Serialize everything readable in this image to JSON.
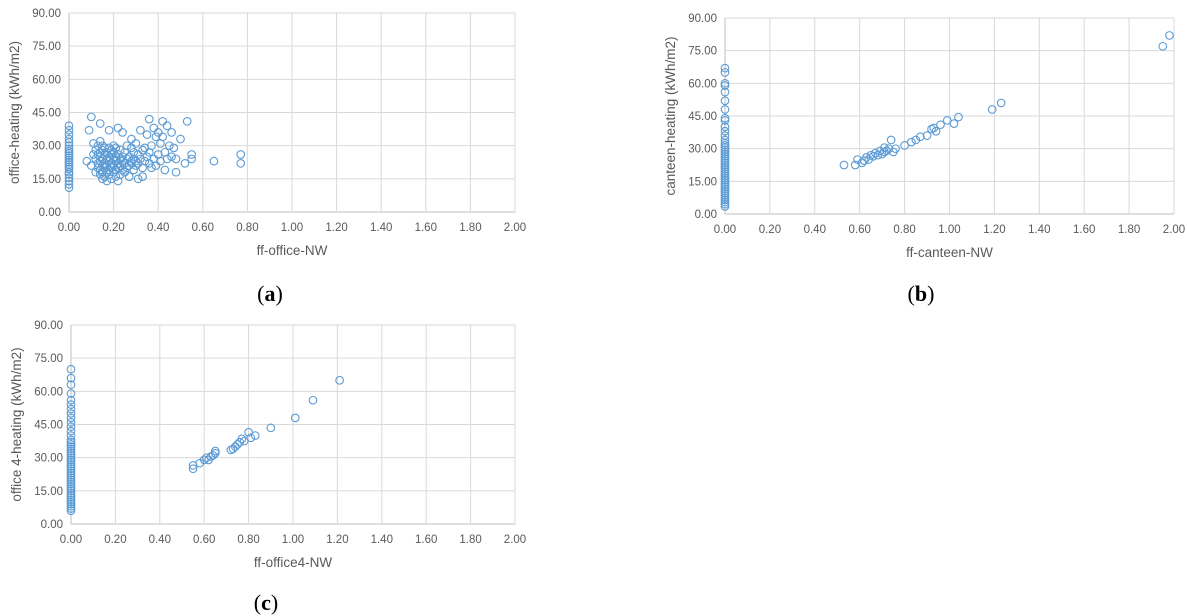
{
  "colors": {
    "marker": "#5b9bd5",
    "grid": "#d9d9d9",
    "axis": "#bfbfbf",
    "text": "#595959"
  },
  "chart_data": [
    {
      "id": "a",
      "type": "scatter",
      "panel_label": "a",
      "xlabel": "ff-office-NW",
      "ylabel": "office-heating (kWh/m2)",
      "xlim": [
        0,
        2
      ],
      "ylim": [
        0,
        90
      ],
      "xticks": [
        "0.00",
        "0.20",
        "0.40",
        "0.60",
        "0.80",
        "1.00",
        "1.20",
        "1.40",
        "1.60",
        "1.80",
        "2.00"
      ],
      "yticks": [
        "0.00",
        "15.00",
        "30.00",
        "45.00",
        "60.00",
        "75.00",
        "90.00"
      ],
      "grid": true,
      "points": [
        [
          0,
          11
        ],
        [
          0,
          12.5
        ],
        [
          0,
          14
        ],
        [
          0,
          15.5
        ],
        [
          0,
          17
        ],
        [
          0,
          18
        ],
        [
          0,
          19.5
        ],
        [
          0,
          20.5
        ],
        [
          0,
          21.5
        ],
        [
          0,
          22.5
        ],
        [
          0,
          23.5
        ],
        [
          0,
          24.5
        ],
        [
          0,
          25.5
        ],
        [
          0,
          26.5
        ],
        [
          0,
          27.5
        ],
        [
          0,
          28.5
        ],
        [
          0,
          30
        ],
        [
          0,
          31.5
        ],
        [
          0,
          33
        ],
        [
          0,
          35
        ],
        [
          0,
          37
        ],
        [
          0,
          39
        ],
        [
          0.08,
          23
        ],
        [
          0.09,
          37
        ],
        [
          0.1,
          43
        ],
        [
          0.1,
          21
        ],
        [
          0.11,
          26
        ],
        [
          0.11,
          31
        ],
        [
          0.12,
          18
        ],
        [
          0.12,
          24
        ],
        [
          0.12,
          28
        ],
        [
          0.13,
          20
        ],
        [
          0.13,
          22
        ],
        [
          0.13,
          26
        ],
        [
          0.13,
          30
        ],
        [
          0.14,
          17
        ],
        [
          0.14,
          19
        ],
        [
          0.14,
          23
        ],
        [
          0.14,
          25
        ],
        [
          0.14,
          27
        ],
        [
          0.14,
          32
        ],
        [
          0.14,
          40
        ],
        [
          0.15,
          15
        ],
        [
          0.15,
          18
        ],
        [
          0.15,
          21
        ],
        [
          0.15,
          24
        ],
        [
          0.15,
          28
        ],
        [
          0.15,
          30
        ],
        [
          0.16,
          16
        ],
        [
          0.16,
          20
        ],
        [
          0.16,
          22
        ],
        [
          0.16,
          26
        ],
        [
          0.16,
          29
        ],
        [
          0.17,
          14
        ],
        [
          0.17,
          18
        ],
        [
          0.17,
          21
        ],
        [
          0.17,
          24
        ],
        [
          0.17,
          27
        ],
        [
          0.18,
          17
        ],
        [
          0.18,
          19
        ],
        [
          0.18,
          23
        ],
        [
          0.18,
          25
        ],
        [
          0.18,
          29
        ],
        [
          0.18,
          37
        ],
        [
          0.19,
          15
        ],
        [
          0.19,
          20
        ],
        [
          0.19,
          22
        ],
        [
          0.19,
          26
        ],
        [
          0.19,
          28
        ],
        [
          0.2,
          18
        ],
        [
          0.2,
          21
        ],
        [
          0.2,
          24
        ],
        [
          0.2,
          27
        ],
        [
          0.2,
          30
        ],
        [
          0.21,
          16
        ],
        [
          0.21,
          19
        ],
        [
          0.21,
          23
        ],
        [
          0.21,
          25
        ],
        [
          0.21,
          29
        ],
        [
          0.22,
          14
        ],
        [
          0.22,
          20
        ],
        [
          0.22,
          22
        ],
        [
          0.22,
          26
        ],
        [
          0.22,
          38
        ],
        [
          0.23,
          17
        ],
        [
          0.23,
          21
        ],
        [
          0.23,
          24
        ],
        [
          0.23,
          28
        ],
        [
          0.24,
          19
        ],
        [
          0.24,
          23
        ],
        [
          0.24,
          25
        ],
        [
          0.24,
          36
        ],
        [
          0.25,
          18
        ],
        [
          0.25,
          22
        ],
        [
          0.25,
          27
        ],
        [
          0.26,
          20
        ],
        [
          0.26,
          24
        ],
        [
          0.26,
          30
        ],
        [
          0.27,
          16
        ],
        [
          0.27,
          21
        ],
        [
          0.27,
          25
        ],
        [
          0.28,
          22
        ],
        [
          0.28,
          23
        ],
        [
          0.28,
          29
        ],
        [
          0.28,
          33
        ],
        [
          0.29,
          19
        ],
        [
          0.29,
          24
        ],
        [
          0.29,
          27
        ],
        [
          0.3,
          21
        ],
        [
          0.3,
          23
        ],
        [
          0.3,
          31
        ],
        [
          0.31,
          15
        ],
        [
          0.31,
          22
        ],
        [
          0.31,
          26
        ],
        [
          0.32,
          24
        ],
        [
          0.32,
          37
        ],
        [
          0.33,
          16
        ],
        [
          0.33,
          20
        ],
        [
          0.33,
          28
        ],
        [
          0.34,
          23
        ],
        [
          0.34,
          29
        ],
        [
          0.35,
          25
        ],
        [
          0.35,
          35
        ],
        [
          0.36,
          22
        ],
        [
          0.36,
          27
        ],
        [
          0.36,
          42
        ],
        [
          0.37,
          20
        ],
        [
          0.37,
          30
        ],
        [
          0.38,
          24
        ],
        [
          0.38,
          38
        ],
        [
          0.39,
          21
        ],
        [
          0.39,
          34
        ],
        [
          0.4,
          26
        ],
        [
          0.4,
          36
        ],
        [
          0.41,
          23
        ],
        [
          0.41,
          31
        ],
        [
          0.42,
          34
        ],
        [
          0.42,
          41
        ],
        [
          0.43,
          19
        ],
        [
          0.43,
          27
        ],
        [
          0.44,
          24
        ],
        [
          0.44,
          39
        ],
        [
          0.45,
          30
        ],
        [
          0.46,
          25
        ],
        [
          0.46,
          36
        ],
        [
          0.47,
          29
        ],
        [
          0.48,
          18
        ],
        [
          0.48,
          24
        ],
        [
          0.5,
          33
        ],
        [
          0.52,
          22
        ],
        [
          0.53,
          41
        ],
        [
          0.55,
          24
        ],
        [
          0.55,
          26
        ],
        [
          0.65,
          23
        ],
        [
          0.77,
          22
        ],
        [
          0.77,
          26
        ]
      ]
    },
    {
      "id": "b",
      "type": "scatter",
      "panel_label": "b",
      "xlabel": "ff-canteen-NW",
      "ylabel": "canteen-heating (kWh/m2)",
      "xlim": [
        0,
        2
      ],
      "ylim": [
        0,
        90
      ],
      "xticks": [
        "0.00",
        "0.20",
        "0.40",
        "0.60",
        "0.80",
        "1.00",
        "1.20",
        "1.40",
        "1.60",
        "1.80",
        "2.00"
      ],
      "yticks": [
        "0.00",
        "15.00",
        "30.00",
        "45.00",
        "60.00",
        "75.00",
        "90.00"
      ],
      "grid": true,
      "points": [
        [
          0,
          3.5
        ],
        [
          0,
          4.5
        ],
        [
          0,
          5.5
        ],
        [
          0,
          6.5
        ],
        [
          0,
          7.5
        ],
        [
          0,
          8.5
        ],
        [
          0,
          9.5
        ],
        [
          0,
          10.5
        ],
        [
          0,
          11.5
        ],
        [
          0,
          12.5
        ],
        [
          0,
          13.5
        ],
        [
          0,
          14.5
        ],
        [
          0,
          15.5
        ],
        [
          0,
          16.5
        ],
        [
          0,
          17.5
        ],
        [
          0,
          18.5
        ],
        [
          0,
          19.5
        ],
        [
          0,
          20.5
        ],
        [
          0,
          21.5
        ],
        [
          0,
          22.5
        ],
        [
          0,
          23.5
        ],
        [
          0,
          24.5
        ],
        [
          0,
          25.5
        ],
        [
          0,
          26.5
        ],
        [
          0,
          27.5
        ],
        [
          0,
          28.5
        ],
        [
          0,
          29.5
        ],
        [
          0,
          30.5
        ],
        [
          0,
          31.5
        ],
        [
          0,
          32.5
        ],
        [
          0,
          34
        ],
        [
          0,
          36
        ],
        [
          0,
          38
        ],
        [
          0,
          40
        ],
        [
          0,
          43
        ],
        [
          0,
          44
        ],
        [
          0,
          48
        ],
        [
          0,
          52
        ],
        [
          0,
          56
        ],
        [
          0,
          59
        ],
        [
          0,
          60
        ],
        [
          0,
          65
        ],
        [
          0,
          67
        ],
        [
          0.53,
          22.5
        ],
        [
          0.58,
          22.5
        ],
        [
          0.59,
          25
        ],
        [
          0.61,
          23.5
        ],
        [
          0.62,
          24.5
        ],
        [
          0.63,
          26
        ],
        [
          0.64,
          25
        ],
        [
          0.65,
          27
        ],
        [
          0.66,
          26.5
        ],
        [
          0.67,
          28
        ],
        [
          0.68,
          27
        ],
        [
          0.69,
          29
        ],
        [
          0.7,
          27.5
        ],
        [
          0.71,
          28.5
        ],
        [
          0.71,
          30.5
        ],
        [
          0.72,
          29
        ],
        [
          0.73,
          30
        ],
        [
          0.74,
          34
        ],
        [
          0.75,
          28.5
        ],
        [
          0.76,
          30
        ],
        [
          0.8,
          31.5
        ],
        [
          0.83,
          33
        ],
        [
          0.85,
          34
        ],
        [
          0.87,
          35.5
        ],
        [
          0.9,
          36
        ],
        [
          0.92,
          39
        ],
        [
          0.93,
          39.5
        ],
        [
          0.94,
          38
        ],
        [
          0.96,
          41
        ],
        [
          0.99,
          43
        ],
        [
          1.02,
          41.5
        ],
        [
          1.04,
          44.5
        ],
        [
          1.19,
          48
        ],
        [
          1.23,
          51
        ],
        [
          1.95,
          77
        ],
        [
          1.98,
          82
        ]
      ]
    },
    {
      "id": "c",
      "type": "scatter",
      "panel_label": "c",
      "xlabel": "ff-office4-NW",
      "ylabel": "office 4-heating (kWh/m2)",
      "xlim": [
        0,
        2
      ],
      "ylim": [
        0,
        90
      ],
      "xticks": [
        "0.00",
        "0.20",
        "0.40",
        "0.60",
        "0.80",
        "1.00",
        "1.20",
        "1.40",
        "1.60",
        "1.80",
        "2.00"
      ],
      "yticks": [
        "0.00",
        "15.00",
        "30.00",
        "45.00",
        "60.00",
        "75.00",
        "90.00"
      ],
      "grid": true,
      "points": [
        [
          0,
          6
        ],
        [
          0,
          7
        ],
        [
          0,
          8
        ],
        [
          0,
          9
        ],
        [
          0,
          10
        ],
        [
          0,
          11
        ],
        [
          0,
          12
        ],
        [
          0,
          13
        ],
        [
          0,
          14
        ],
        [
          0,
          15
        ],
        [
          0,
          16
        ],
        [
          0,
          17
        ],
        [
          0,
          18
        ],
        [
          0,
          19
        ],
        [
          0,
          20
        ],
        [
          0,
          21
        ],
        [
          0,
          22
        ],
        [
          0,
          23
        ],
        [
          0,
          24
        ],
        [
          0,
          25
        ],
        [
          0,
          26
        ],
        [
          0,
          27
        ],
        [
          0,
          28
        ],
        [
          0,
          29
        ],
        [
          0,
          30
        ],
        [
          0,
          31
        ],
        [
          0,
          32
        ],
        [
          0,
          33
        ],
        [
          0,
          34
        ],
        [
          0,
          35
        ],
        [
          0,
          36
        ],
        [
          0,
          37
        ],
        [
          0,
          38
        ],
        [
          0,
          40
        ],
        [
          0,
          42
        ],
        [
          0,
          44
        ],
        [
          0,
          46
        ],
        [
          0,
          48
        ],
        [
          0,
          50
        ],
        [
          0,
          52
        ],
        [
          0,
          54
        ],
        [
          0,
          56
        ],
        [
          0,
          59
        ],
        [
          0,
          63
        ],
        [
          0,
          66
        ],
        [
          0,
          70
        ],
        [
          0.55,
          25
        ],
        [
          0.55,
          26.5
        ],
        [
          0.58,
          27.5
        ],
        [
          0.6,
          29
        ],
        [
          0.61,
          30
        ],
        [
          0.62,
          29
        ],
        [
          0.63,
          30.5
        ],
        [
          0.64,
          31
        ],
        [
          0.65,
          32
        ],
        [
          0.65,
          33
        ],
        [
          0.72,
          33.5
        ],
        [
          0.73,
          34
        ],
        [
          0.74,
          35
        ],
        [
          0.75,
          36
        ],
        [
          0.76,
          37
        ],
        [
          0.77,
          38.5
        ],
        [
          0.78,
          37.5
        ],
        [
          0.8,
          41.5
        ],
        [
          0.81,
          39
        ],
        [
          0.83,
          40
        ],
        [
          0.9,
          43.5
        ],
        [
          1.01,
          48
        ],
        [
          1.09,
          56
        ],
        [
          1.21,
          65
        ]
      ]
    }
  ]
}
